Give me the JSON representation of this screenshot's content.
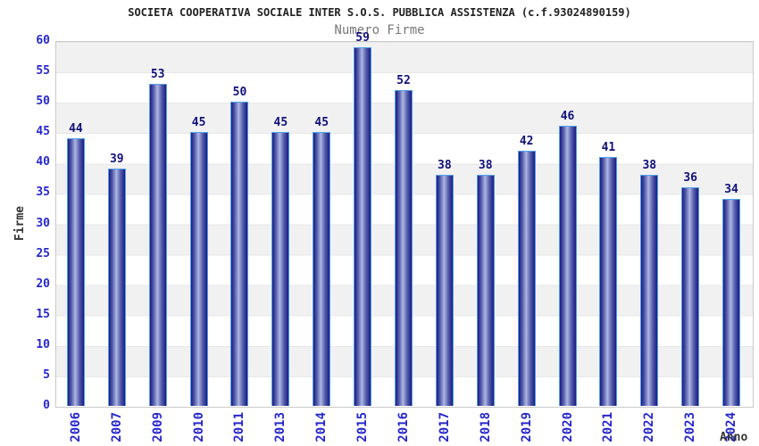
{
  "chart_data": {
    "type": "bar",
    "title": "SOCIETA COOPERATIVA SOCIALE INTER S.O.S. PUBBLICA ASSISTENZA (c.f.93024890159)",
    "subtitle": "Numero Firme",
    "xlabel": "Anno",
    "ylabel": "Firme",
    "categories": [
      "2006",
      "2007",
      "2009",
      "2010",
      "2011",
      "2013",
      "2014",
      "2015",
      "2016",
      "2017",
      "2018",
      "2019",
      "2020",
      "2021",
      "2022",
      "2023",
      "2024"
    ],
    "values": [
      44,
      39,
      53,
      45,
      50,
      45,
      45,
      59,
      52,
      38,
      38,
      42,
      46,
      41,
      38,
      36,
      34
    ],
    "ylim": [
      0,
      60
    ],
    "yticks": [
      0,
      5,
      10,
      15,
      20,
      25,
      30,
      35,
      40,
      45,
      50,
      55,
      60
    ],
    "grid": "horizontal-bands-every-5",
    "legend": "none",
    "bar_value_labels": true,
    "colors": {
      "bar_edge": "#1b1b82",
      "bar_mid": "#545dab",
      "bar_highlight": "#aeb6e3",
      "bar_border": "#4f9fe8",
      "tick_label": "#2727cd",
      "value_label": "#10107a",
      "band": "#f1f1f1",
      "axis_border": "#c9c9c9",
      "title": "#222222",
      "subtitle": "#777777",
      "axis_title": "#333333"
    }
  }
}
